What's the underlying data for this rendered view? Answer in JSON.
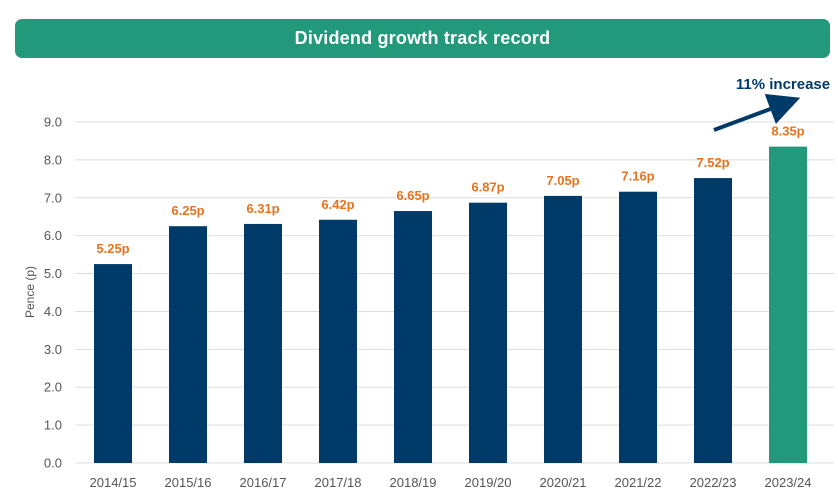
{
  "title": "Dividend growth track record",
  "colors": {
    "banner": "#22997a",
    "bar": "#003a69",
    "highlight_bar": "#22997a",
    "data_label": "#e8731e",
    "annotation": "#003a69",
    "grid": "#dddddd"
  },
  "annotation": {
    "text": "11% increase",
    "icon": "arrow-up-right-icon"
  },
  "chart_data": {
    "type": "bar",
    "title": "Dividend growth track record",
    "xlabel": "",
    "ylabel": "Pence (p)",
    "ylim": [
      0,
      9
    ],
    "yticks": [
      "0.0",
      "1.0",
      "2.0",
      "3.0",
      "4.0",
      "5.0",
      "6.0",
      "7.0",
      "8.0",
      "9.0"
    ],
    "grid": true,
    "categories": [
      "2014/15",
      "2015/16",
      "2016/17",
      "2017/18",
      "2018/19",
      "2019/20",
      "2020/21",
      "2021/22",
      "2022/23",
      "2023/24"
    ],
    "values": [
      5.25,
      6.25,
      6.31,
      6.42,
      6.65,
      6.87,
      7.05,
      7.16,
      7.52,
      8.35
    ],
    "data_labels": [
      "5.25p",
      "6.25p",
      "6.31p",
      "6.42p",
      "6.65p",
      "6.87p",
      "7.05p",
      "7.16p",
      "7.52p",
      "8.35p"
    ],
    "highlight_index": 9
  }
}
